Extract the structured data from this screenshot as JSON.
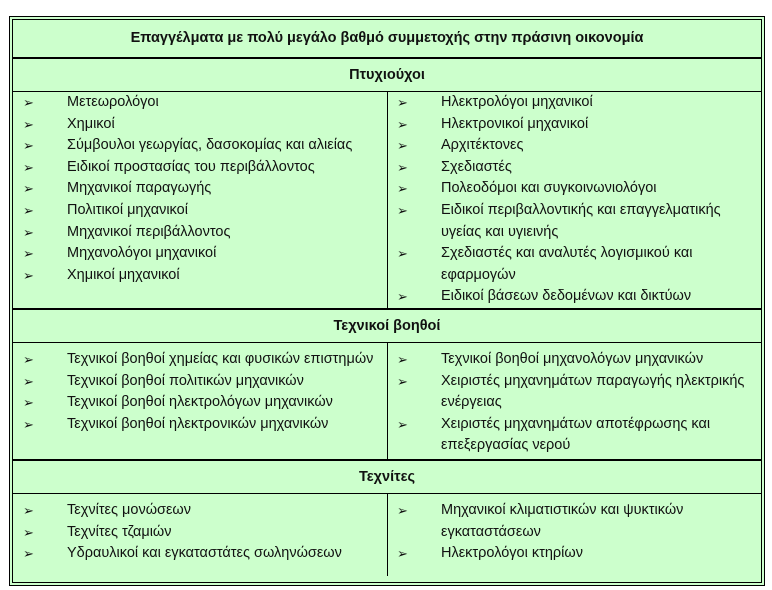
{
  "title": "Επαγγέλματα με πολύ μεγάλο βαθμό συμμετοχής στην πράσινη οικονομία",
  "bullet_icon": "arrowhead-bullet",
  "background_color": "#ccffcc",
  "sections": [
    {
      "heading": "Πτυχιούχοι",
      "left": [
        "Μετεωρολόγοι",
        "Χημικοί",
        "Σύμβουλοι γεωργίας, δασοκομίας και αλιείας",
        "Ειδικοί προστασίας του περιβάλλοντος",
        "Μηχανικοί παραγωγής",
        "Πολιτικοί μηχανικοί",
        "Μηχανικοί περιβάλλοντος",
        "Μηχανολόγοι μηχανικοί",
        "Χημικοί μηχανικοί"
      ],
      "right": [
        "Ηλεκτρολόγοι μηχανικοί",
        "Ηλεκτρονικοί μηχανικοί",
        "Αρχιτέκτονες",
        "Σχεδιαστές",
        "Πολεοδόμοι και συγκοινωνιολόγοι",
        "Ειδικοί περιβαλλοντικής και επαγγελματικής υγείας και υγιεινής",
        "Σχεδιαστές και αναλυτές λογισμικού και εφαρμογών",
        "Ειδικοί βάσεων δεδομένων και δικτύων"
      ]
    },
    {
      "heading": "Τεχνικοί βοηθοί",
      "left": [
        "Τεχνικοί βοηθοί χημείας και φυσικών επιστημών",
        "Τεχνικοί βοηθοί πολιτικών μηχανικών",
        "Τεχνικοί βοηθοί ηλεκτρολόγων μηχανικών",
        "Τεχνικοί βοηθοί ηλεκτρονικών μηχανικών"
      ],
      "right": [
        "Τεχνικοί βοηθοί μηχανολόγων μηχανικών",
        "Χειριστές μηχανημάτων παραγωγής ηλεκτρικής ενέργειας",
        "Χειριστές μηχανημάτων αποτέφρωσης και επεξεργασίας νερού"
      ]
    },
    {
      "heading": "Τεχνίτες",
      "left": [
        "Τεχνίτες μονώσεων",
        "Τεχνίτες τζαμιών",
        "Υδραυλικοί και εγκαταστάτες σωληνώσεων"
      ],
      "right": [
        "Μηχανικοί κλιματιστικών και ψυκτικών εγκαταστάσεων",
        "Ηλεκτρολόγοι κτηρίων"
      ]
    }
  ]
}
